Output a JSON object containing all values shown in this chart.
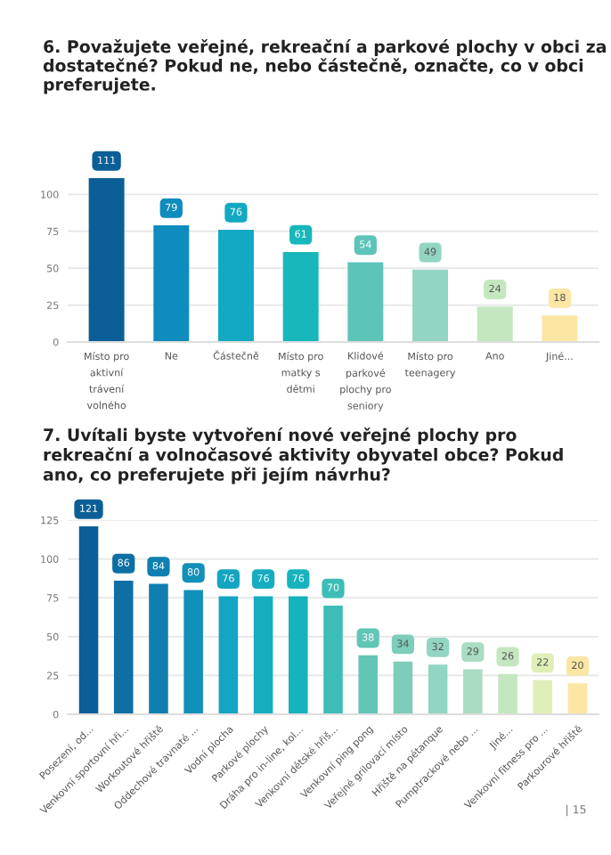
{
  "chart_data": [
    {
      "type": "bar",
      "title": "6. Považujete veřejné, rekreační a parkové plochy v obci za dostatečné? Pokud ne, nebo částečně, označte, co v obci preferujete.",
      "categories": [
        "Místo pro aktivní trávení volného",
        "Ne",
        "Částečně",
        "Místo pro matky s dětmi",
        "Klidové parkové plochy pro seniory",
        "Místo pro teenagery",
        "Ano",
        "Jiné..."
      ],
      "values": [
        111,
        79,
        76,
        61,
        54,
        49,
        24,
        18
      ],
      "colors": [
        "#0b5f96",
        "#0f8cbd",
        "#13a9c2",
        "#17b7bb",
        "#5cc4b9",
        "#93d5c3",
        "#c4e7c0",
        "#fbe6a4"
      ],
      "ylim": [
        0,
        111
      ],
      "yticks": [
        0,
        25,
        50,
        75,
        100
      ],
      "grid": "y",
      "data_labels": true
    },
    {
      "type": "bar",
      "title": "7. Uvítali byste vytvoření nové veřejné plochy pro rekreační a volnočasové aktivity obyvatel obce? Pokud ano, co preferujete při jejím návrhu?",
      "categories": [
        "Posezení, od...",
        "Venkovní sportovní hři...",
        "Workoutové hřiště",
        "Oddechové travnaté ...",
        "Vodní plocha",
        "Parkové plochy",
        "Dráha pro in-line, kol...",
        "Venkovní dětské hřiš...",
        "Venkovní ping pong",
        "Veřejné grilovací místo",
        "Hřiště na pétanque",
        "Pumptrackové nebo ...",
        "Jiné...",
        "Venkovní fitness pro ...",
        "Parkourové hřiště"
      ],
      "values": [
        121,
        86,
        84,
        80,
        76,
        76,
        76,
        70,
        38,
        34,
        32,
        29,
        26,
        22,
        20
      ],
      "colors": [
        "#0b5f96",
        "#0d6fa3",
        "#0f7fb0",
        "#1190ba",
        "#13a5c2",
        "#15adbf",
        "#16b3bd",
        "#3dbdb7",
        "#62c6b6",
        "#7ccdb9",
        "#93d5c3",
        "#a9dcc3",
        "#c4e7c0",
        "#e0eeb8",
        "#fbe6a4"
      ],
      "ylim": [
        0,
        125
      ],
      "yticks": [
        0,
        25,
        50,
        75,
        100,
        125
      ],
      "grid": "y",
      "data_labels": true,
      "annotations": [
        "| 15"
      ]
    }
  ]
}
